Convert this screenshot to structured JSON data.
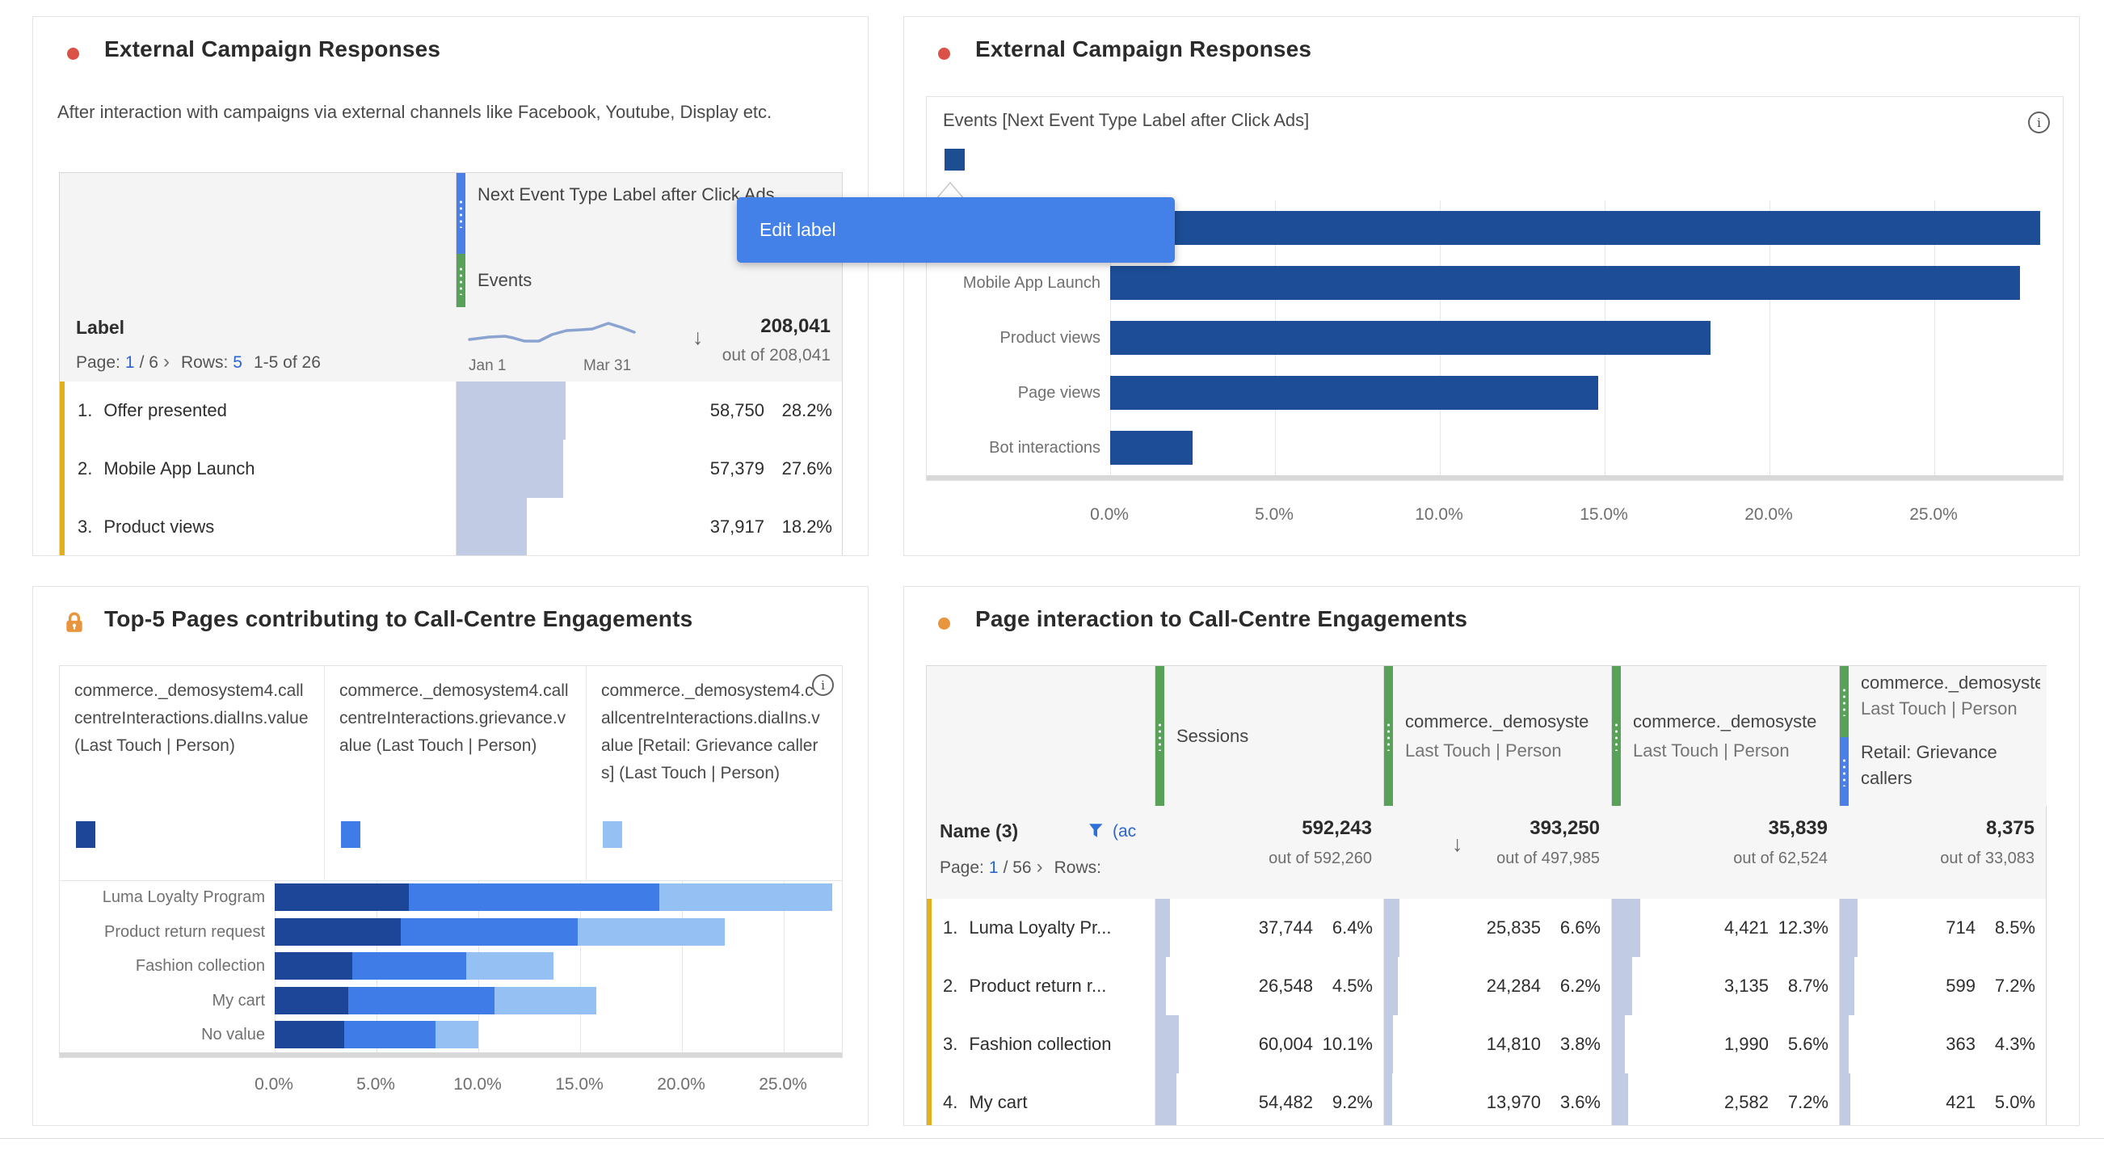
{
  "icons": {
    "sort_desc": "↓",
    "info": "i"
  },
  "panels": {
    "p1": {
      "title": "External Campaign Responses",
      "description": "After interaction with campaigns via external channels like Facebook, Youtube, Display etc.",
      "table": {
        "dimension_header": "Next Event Type Label after Click Ads",
        "metric_header": "Events",
        "row_label_header": "Label",
        "pager": {
          "page_label": "Page:",
          "page": "1",
          "page_total": "/ 6",
          "chevron": "›",
          "rows_label": "Rows:",
          "rows": "5",
          "range": "1-5 of 26"
        },
        "sparkline": {
          "start_label": "Jan 1",
          "end_label": "Mar 31"
        },
        "total": "208,041",
        "total_sub": "out of 208,041",
        "rows": [
          {
            "idx": "1.",
            "label": "Offer presented",
            "value": "58,750",
            "pct_label": "28.2%",
            "pct": 28.2
          },
          {
            "idx": "2.",
            "label": "Mobile App Launch",
            "value": "57,379",
            "pct_label": "27.6%",
            "pct": 27.6
          },
          {
            "idx": "3.",
            "label": "Product views",
            "value": "37,917",
            "pct_label": "18.2%",
            "pct": 18.2
          }
        ]
      }
    },
    "p2": {
      "title": "External Campaign Responses",
      "legend_label": "Events [Next Event Type Label after Click Ads]",
      "legend_color": "#1d4e91",
      "tooltip_label": "Edit label"
    },
    "p3": {
      "title": "Top-5 Pages contributing to Call-Centre Engagements",
      "legend": [
        {
          "label": "commerce._demosystem4.callcentreInteractions.dialIns.value (Last Touch | Person)",
          "color": "#1d4699"
        },
        {
          "label": "commerce._demosystem4.callcentreInteractions.grievance.value (Last Touch | Person)",
          "color": "#3f7ce8"
        },
        {
          "label": "commerce._demosystem4.callcentreInteractions.dialIns.value [Retail: Grievance callers] (Last Touch | Person)",
          "color": "#95c0f4"
        }
      ]
    },
    "p4": {
      "title": "Page interaction to Call-Centre Engagements",
      "columns": [
        {
          "name": "Sessions",
          "sub": ""
        },
        {
          "name": "commerce._demosyste",
          "sub": "Last Touch | Person"
        },
        {
          "name": "commerce._demosyste",
          "sub": "Last Touch | Person"
        },
        {
          "name": "commerce._demosyste",
          "sub": "Last Touch | Person",
          "segment_line1": "Retail: Grievance",
          "segment_line2": "callers"
        }
      ],
      "name_header": "Name (3)",
      "filter_label": "(ac",
      "pager": {
        "page_label": "Page:",
        "page": "1",
        "page_total": "/ 56",
        "chevron": "›",
        "rows_label": "Rows:"
      },
      "totals": [
        {
          "value": "592,243",
          "sub": "out of 592,260"
        },
        {
          "value": "393,250",
          "sub": "out of 497,985"
        },
        {
          "value": "35,839",
          "sub": "out of 62,524"
        },
        {
          "value": "8,375",
          "sub": "out of 33,083"
        }
      ],
      "rows": [
        {
          "idx": "1.",
          "label": "Luma Loyalty Pr...",
          "cells": [
            {
              "v": "37,744",
              "p": "6.4%",
              "pct": 6.4
            },
            {
              "v": "25,835",
              "p": "6.6%",
              "pct": 6.6
            },
            {
              "v": "4,421",
              "p": "12.3%",
              "pct": 12.3
            },
            {
              "v": "714",
              "p": "8.5%",
              "pct": 8.5
            }
          ]
        },
        {
          "idx": "2.",
          "label": "Product return r...",
          "cells": [
            {
              "v": "26,548",
              "p": "4.5%",
              "pct": 4.5
            },
            {
              "v": "24,284",
              "p": "6.2%",
              "pct": 6.2
            },
            {
              "v": "3,135",
              "p": "8.7%",
              "pct": 8.7
            },
            {
              "v": "599",
              "p": "7.2%",
              "pct": 7.2
            }
          ]
        },
        {
          "idx": "3.",
          "label": "Fashion collection",
          "cells": [
            {
              "v": "60,004",
              "p": "10.1%",
              "pct": 10.1
            },
            {
              "v": "14,810",
              "p": "3.8%",
              "pct": 3.8
            },
            {
              "v": "1,990",
              "p": "5.6%",
              "pct": 5.6
            },
            {
              "v": "363",
              "p": "4.3%",
              "pct": 4.3
            }
          ]
        },
        {
          "idx": "4.",
          "label": "My cart",
          "cells": [
            {
              "v": "54,482",
              "p": "9.2%",
              "pct": 9.2
            },
            {
              "v": "13,970",
              "p": "3.6%",
              "pct": 3.6
            },
            {
              "v": "2,582",
              "p": "7.2%",
              "pct": 7.2
            },
            {
              "v": "421",
              "p": "5.0%",
              "pct": 5.0
            }
          ]
        }
      ]
    }
  },
  "chart_data": [
    {
      "type": "bar",
      "orientation": "horizontal",
      "title": "External Campaign Responses",
      "legend": "Events [Next Event Type Label after Click Ads]",
      "categories": [
        "Offer presented",
        "Mobile App Launch",
        "Product views",
        "Page views",
        "Bot interactions"
      ],
      "values": [
        28.2,
        27.6,
        18.2,
        14.8,
        2.5
      ],
      "unit": "%",
      "xlim": [
        0,
        28.7
      ],
      "tick_values": [
        0,
        5,
        10,
        15,
        20,
        25
      ],
      "tick_labels": [
        "0.0%",
        "5.0%",
        "10.0%",
        "15.0%",
        "20.0%",
        "25.0%"
      ],
      "bar_color": "#1c4d96",
      "grid": true,
      "legend_position": "top-left"
    },
    {
      "type": "bar",
      "orientation": "horizontal",
      "stacked": true,
      "title": "Top-5 Pages contributing to Call-Centre Engagements",
      "categories": [
        "Luma Loyalty Program",
        "Product return request",
        "Fashion collection",
        "My cart",
        "No value"
      ],
      "series": [
        {
          "name": "commerce._demosystem4.callcentreInteractions.dialIns.value (Last Touch | Person)",
          "color": "#1d4699",
          "values": [
            6.6,
            6.2,
            3.8,
            3.6,
            3.4
          ]
        },
        {
          "name": "commerce._demosystem4.callcentreInteractions.grievance.value (Last Touch | Person)",
          "color": "#3f7ce8",
          "values": [
            12.3,
            8.7,
            5.6,
            7.2,
            4.5
          ]
        },
        {
          "name": "commerce._demosystem4.callcentreInteractions.dialIns.value [Retail: Grievance callers] (Last Touch | Person)",
          "color": "#95c0f4",
          "values": [
            8.5,
            7.2,
            4.3,
            5.0,
            2.1
          ]
        }
      ],
      "unit": "%",
      "xlim": [
        0,
        27.8
      ],
      "tick_values": [
        0,
        5,
        10,
        15,
        20,
        25
      ],
      "tick_labels": [
        "0.0%",
        "5.0%",
        "10.0%",
        "15.0%",
        "20.0%",
        "25.0%"
      ],
      "grid": true,
      "legend_position": "top"
    }
  ]
}
